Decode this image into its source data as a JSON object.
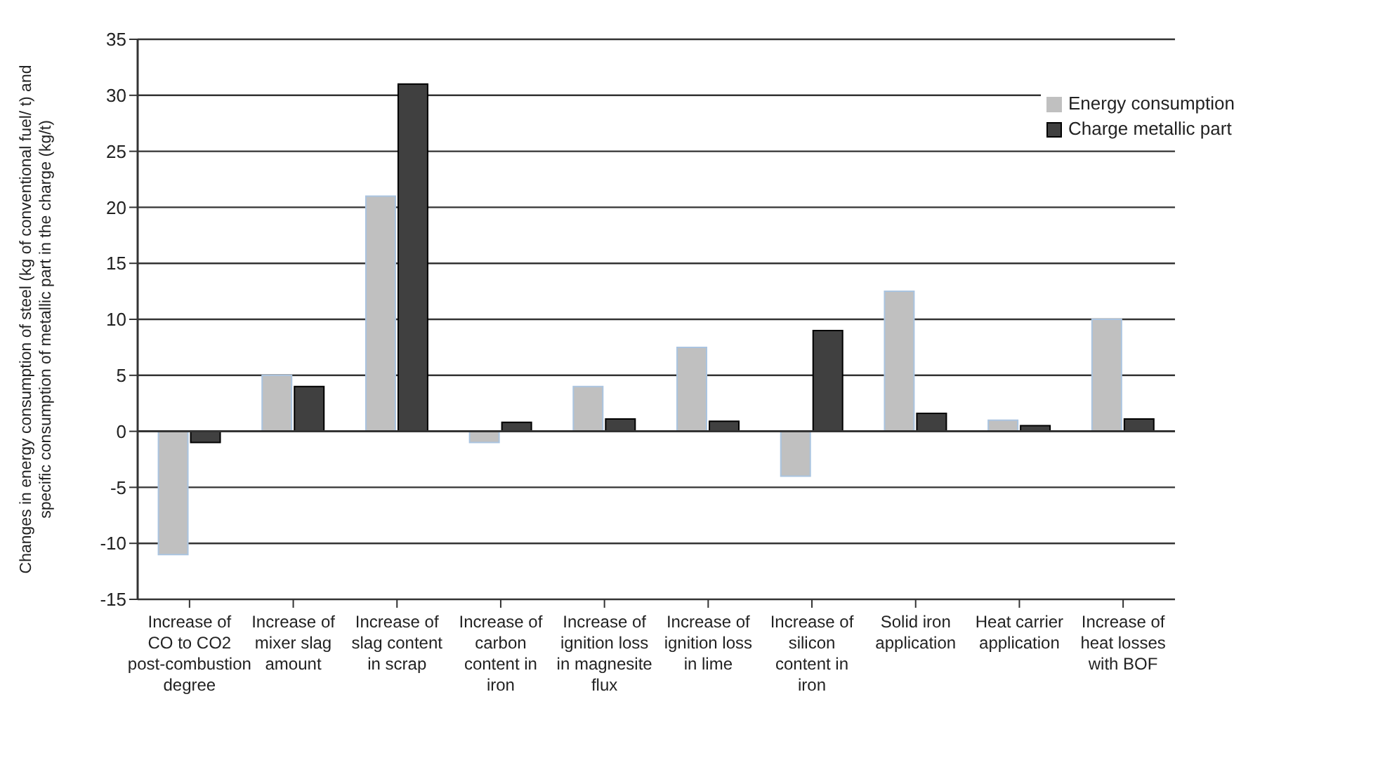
{
  "chart_data": {
    "type": "bar",
    "ylabel": "Changes in energy consumption of steel (kg of conventional fuel/ t) and specific consumption of metallic part in the charge (kg/t)",
    "categories": [
      "Increase of CO to CO2 post-combustion degree",
      "Increase of mixer slag amount",
      "Increase of slag content in scrap",
      "Increase of carbon content in iron",
      "Increase of ignition loss in magnesite flux",
      "Increase of ignition loss in lime",
      "Increase of silicon content in iron",
      "Solid iron application",
      "Heat carrier application",
      "Increase of heat losses with BOF"
    ],
    "series": [
      {
        "name": "Energy consumption",
        "color": "#c0c0c0",
        "values": [
          -11,
          5,
          21,
          -1,
          4,
          7.5,
          -4,
          12.5,
          1,
          10
        ]
      },
      {
        "name": "Charge metallic part",
        "color": "#404040",
        "values": [
          -1,
          4,
          31,
          0.8,
          1.1,
          0.9,
          9,
          1.6,
          0.5,
          1.1
        ]
      }
    ],
    "ylim": [
      -15,
      35
    ],
    "yticks": [
      -15,
      -10,
      -5,
      0,
      5,
      10,
      15,
      20,
      25,
      30,
      35
    ],
    "grid": "y",
    "legend": "top right"
  }
}
